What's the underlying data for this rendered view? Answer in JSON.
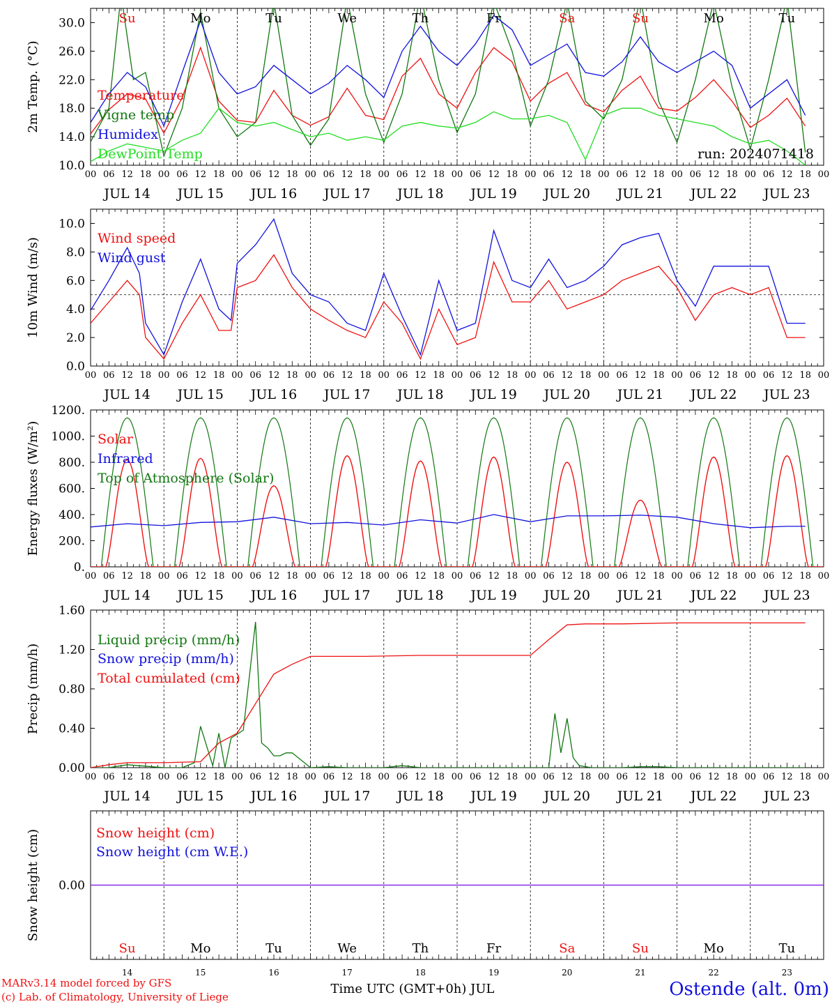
{
  "meta": {
    "run_label": "run: 2024071418",
    "footer_model": "MARv3.14 model forced by GFS",
    "footer_lab": "(c) Lab. of Climatology, University of Liege",
    "station": "Ostende (alt. 0m)",
    "xaxis_title": "Time UTC (GMT+0h) JUL"
  },
  "days": [
    {
      "date": "JUL 14",
      "num": "14",
      "wd": "Su",
      "weekend": true
    },
    {
      "date": "JUL 15",
      "num": "15",
      "wd": "Mo",
      "weekend": false
    },
    {
      "date": "JUL 16",
      "num": "16",
      "wd": "Tu",
      "weekend": false
    },
    {
      "date": "JUL 17",
      "num": "17",
      "wd": "We",
      "weekend": false
    },
    {
      "date": "JUL 18",
      "num": "18",
      "wd": "Th",
      "weekend": false
    },
    {
      "date": "JUL 19",
      "num": "19",
      "wd": "Fr",
      "weekend": false
    },
    {
      "date": "JUL 20",
      "num": "20",
      "wd": "Sa",
      "weekend": true
    },
    {
      "date": "JUL 21",
      "num": "21",
      "wd": "Su",
      "weekend": true
    },
    {
      "date": "JUL 22",
      "num": "22",
      "wd": "Mo",
      "weekend": false
    },
    {
      "date": "JUL 23",
      "num": "23",
      "wd": "Tu",
      "weekend": false
    }
  ],
  "hour_labels": [
    "00",
    "06",
    "12",
    "18"
  ],
  "colors": {
    "red": "#ee1111",
    "green": "#117711",
    "blue": "#1111dd",
    "lightgreen": "#22dd22",
    "purple": "#8a2be2",
    "weekend": "#ee1111"
  },
  "chart_data": [
    {
      "type": "line",
      "ylabel": "2m Temp. (°C)",
      "ylim": [
        10,
        32
      ],
      "yticks": [
        10,
        14,
        18,
        22,
        26,
        30
      ],
      "ytick_labels": [
        "10.0",
        "14.0",
        "18.0",
        "22.0",
        "26.0",
        "30.0"
      ],
      "x_unit": "hours since JUL 14 00 UTC",
      "series": [
        {
          "name": "Temperature",
          "color": "#ee1111",
          "x": [
            0,
            6,
            12,
            18,
            24,
            30,
            36,
            42,
            48,
            54,
            60,
            66,
            72,
            78,
            84,
            90,
            96,
            102,
            108,
            114,
            120,
            126,
            132,
            138,
            144,
            150,
            156,
            162,
            168,
            174,
            180,
            186,
            192,
            198,
            204,
            210,
            216,
            222,
            228,
            234
          ],
          "y": [
            14.4,
            17.8,
            20.0,
            19.3,
            14.5,
            19.5,
            26.5,
            19.0,
            16.3,
            16.0,
            20.5,
            17.0,
            15.6,
            16.8,
            20.8,
            17.0,
            16.4,
            22.5,
            25.0,
            20.0,
            18.0,
            23.0,
            26.5,
            24.5,
            19.0,
            21.5,
            23.0,
            18.5,
            17.5,
            20.5,
            22.5,
            18.0,
            17.6,
            19.5,
            22.0,
            19.0,
            15.3,
            17.0,
            19.4,
            15.5
          ]
        },
        {
          "name": "Vigne temp",
          "color": "#117711",
          "x": [
            0,
            6,
            10,
            14,
            18,
            24,
            30,
            36,
            42,
            48,
            54,
            60,
            66,
            72,
            78,
            84,
            90,
            96,
            102,
            108,
            114,
            120,
            126,
            132,
            138,
            144,
            150,
            156,
            162,
            168,
            174,
            180,
            186,
            192,
            198,
            204,
            210,
            216,
            222,
            228,
            234
          ],
          "y": [
            13.3,
            18.0,
            34.0,
            22.0,
            23.0,
            11.3,
            18.0,
            31.5,
            18.0,
            14.0,
            16.0,
            33.0,
            17.0,
            12.8,
            16.5,
            33.5,
            20.0,
            13.2,
            20.0,
            34.0,
            22.0,
            14.6,
            20.0,
            33.0,
            26.0,
            15.5,
            22.0,
            33.0,
            19.0,
            16.5,
            22.0,
            33.5,
            19.0,
            13.2,
            22.0,
            33.0,
            21.0,
            12.3,
            22.0,
            33.5,
            11.8
          ]
        },
        {
          "name": "Humidex",
          "color": "#1111dd",
          "x": [
            0,
            6,
            12,
            18,
            24,
            30,
            36,
            42,
            48,
            54,
            60,
            66,
            72,
            78,
            84,
            90,
            96,
            102,
            108,
            114,
            120,
            126,
            132,
            138,
            144,
            150,
            156,
            162,
            168,
            174,
            180,
            186,
            192,
            198,
            204,
            210,
            216,
            222,
            228,
            234
          ],
          "y": [
            16.0,
            20.0,
            23.0,
            21.0,
            15.5,
            23.0,
            30.3,
            23.0,
            20.0,
            21.0,
            24.0,
            22.0,
            20.0,
            21.5,
            24.0,
            22.0,
            19.5,
            26.0,
            29.5,
            26.0,
            24.0,
            27.0,
            31.0,
            29.0,
            24.0,
            25.5,
            27.0,
            23.0,
            22.5,
            24.5,
            28.0,
            24.5,
            23.0,
            24.5,
            26.0,
            24.0,
            18.0,
            20.0,
            22.0,
            17.0
          ]
        },
        {
          "name": "DewPoint Temp",
          "color": "#22dd22",
          "x": [
            0,
            6,
            12,
            18,
            24,
            30,
            36,
            42,
            48,
            54,
            60,
            66,
            72,
            78,
            84,
            90,
            96,
            102,
            108,
            114,
            120,
            126,
            132,
            138,
            144,
            150,
            156,
            162,
            168,
            174,
            180,
            186,
            192,
            198,
            204,
            210,
            216,
            222,
            228,
            234
          ],
          "y": [
            10.5,
            12.0,
            13.0,
            12.5,
            12.0,
            13.5,
            14.5,
            18.0,
            16.0,
            15.5,
            16.0,
            15.0,
            14.0,
            14.5,
            13.5,
            14.0,
            13.5,
            15.5,
            16.0,
            15.5,
            15.2,
            16.0,
            17.5,
            16.5,
            16.5,
            17.0,
            16.0,
            10.8,
            17.0,
            18.0,
            18.0,
            17.0,
            16.5,
            16.0,
            15.5,
            14.0,
            13.0,
            13.5,
            12.0,
            10.0
          ]
        }
      ]
    },
    {
      "type": "line",
      "ylabel": "10m Wind (m/s)",
      "ylim": [
        0,
        11
      ],
      "yticks": [
        0,
        2,
        4,
        6,
        8,
        10
      ],
      "ytick_labels": [
        "0.0",
        "2.0",
        "4.0",
        "6.0",
        "8.0",
        "10.0"
      ],
      "hline": 5,
      "series": [
        {
          "name": "Wind speed",
          "color": "#ee1111",
          "x": [
            0,
            6,
            12,
            16,
            18,
            24,
            30,
            36,
            42,
            46,
            48,
            54,
            60,
            66,
            72,
            78,
            84,
            90,
            96,
            102,
            108,
            114,
            120,
            126,
            132,
            138,
            144,
            150,
            156,
            162,
            168,
            174,
            180,
            186,
            192,
            198,
            204,
            210,
            216,
            222,
            228,
            234
          ],
          "y": [
            3.0,
            4.5,
            6.0,
            5.0,
            2.0,
            0.5,
            3.0,
            5.0,
            2.5,
            2.5,
            5.5,
            6.0,
            7.8,
            5.5,
            4.0,
            3.2,
            2.5,
            2.0,
            4.5,
            3.0,
            0.5,
            4.0,
            1.5,
            2.0,
            7.3,
            4.5,
            4.5,
            6.0,
            4.0,
            4.5,
            5.0,
            6.0,
            6.5,
            7.0,
            5.5,
            3.2,
            5.0,
            5.5,
            5.0,
            5.5,
            2.0,
            2.0
          ]
        },
        {
          "name": "Wind gust",
          "color": "#1111dd",
          "x": [
            0,
            6,
            12,
            16,
            18,
            24,
            30,
            36,
            42,
            46,
            48,
            54,
            60,
            66,
            72,
            78,
            84,
            90,
            96,
            102,
            108,
            114,
            120,
            126,
            132,
            138,
            144,
            150,
            156,
            162,
            168,
            174,
            180,
            186,
            192,
            198,
            204,
            210,
            216,
            222,
            228,
            234
          ],
          "y": [
            3.9,
            6.0,
            8.3,
            6.5,
            3.0,
            0.8,
            4.5,
            7.5,
            4.0,
            3.2,
            7.2,
            8.5,
            10.3,
            6.5,
            5.0,
            4.5,
            3.0,
            2.5,
            6.5,
            3.5,
            0.8,
            6.0,
            2.5,
            3.0,
            9.5,
            6.0,
            5.5,
            7.5,
            5.5,
            6.0,
            7.0,
            8.5,
            9.0,
            9.3,
            6.0,
            4.2,
            7.0,
            7.0,
            7.0,
            7.0,
            3.0,
            3.0
          ]
        }
      ]
    },
    {
      "type": "line",
      "ylabel": "Energy fluxes (W/m²)",
      "ylim": [
        0,
        1200
      ],
      "yticks": [
        0,
        200,
        400,
        600,
        800,
        1000,
        1200
      ],
      "ytick_labels": [
        "0.",
        "200.",
        "400.",
        "600.",
        "800.",
        "1000.",
        "1200."
      ],
      "toa_peak": 1140,
      "solar_peaks": [
        820,
        830,
        620,
        850,
        810,
        840,
        800,
        510,
        840,
        850
      ],
      "series": [
        {
          "name": "Solar",
          "color": "#ee1111"
        },
        {
          "name": "Infrared",
          "color": "#1111dd",
          "x": [
            0,
            12,
            24,
            36,
            48,
            60,
            72,
            84,
            96,
            108,
            120,
            132,
            144,
            156,
            168,
            180,
            192,
            204,
            216,
            228,
            234
          ],
          "y": [
            305,
            330,
            315,
            340,
            345,
            380,
            330,
            340,
            320,
            360,
            335,
            400,
            345,
            390,
            390,
            395,
            380,
            330,
            300,
            310,
            310
          ]
        },
        {
          "name": "Top of Atmosphere (Solar)",
          "color": "#117711"
        }
      ]
    },
    {
      "type": "line",
      "ylabel": "Precip (mm/h)",
      "ylim": [
        0,
        1.6
      ],
      "yticks": [
        0,
        0.4,
        0.8,
        1.2,
        1.6
      ],
      "ytick_labels": [
        "0.00",
        "0.40",
        "0.80",
        "1.20",
        "1.60"
      ],
      "series": [
        {
          "name": "Liquid precip (mm/h)",
          "color": "#117711",
          "x": [
            0,
            6,
            12,
            24,
            30,
            34,
            36,
            40,
            42,
            44,
            46,
            50,
            54,
            56,
            58,
            60,
            62,
            64,
            66,
            72,
            78,
            84,
            96,
            102,
            108,
            120,
            126,
            132,
            144,
            150,
            152,
            154,
            156,
            158,
            160,
            164,
            166,
            168,
            174,
            180,
            186,
            192,
            204,
            216,
            234
          ],
          "y": [
            0,
            0,
            0.03,
            0,
            0,
            0.05,
            0.42,
            0.02,
            0.35,
            0,
            0.3,
            0.38,
            1.48,
            0.25,
            0.2,
            0.12,
            0.12,
            0.15,
            0.15,
            0,
            0.01,
            0,
            0,
            0.02,
            0,
            0,
            0,
            0,
            0,
            0,
            0.55,
            0.15,
            0.5,
            0.1,
            0.02,
            0,
            0,
            0,
            0,
            0.01,
            0.01,
            0,
            0,
            0,
            0
          ]
        },
        {
          "name": "Snow precip (mm/h)",
          "color": "#1111dd"
        },
        {
          "name": "Total cumulated (cm)",
          "color": "#ee1111",
          "x": [
            0,
            6,
            12,
            24,
            36,
            42,
            48,
            54,
            60,
            66,
            72,
            90,
            108,
            126,
            144,
            150,
            156,
            162,
            174,
            192,
            216,
            234
          ],
          "y": [
            0,
            0.03,
            0.05,
            0.05,
            0.06,
            0.25,
            0.35,
            0.65,
            0.95,
            1.05,
            1.13,
            1.13,
            1.14,
            1.14,
            1.14,
            1.3,
            1.45,
            1.46,
            1.46,
            1.47,
            1.47,
            1.47
          ]
        }
      ]
    },
    {
      "type": "line",
      "ylabel": "Snow height (cm)",
      "ylim": [
        -1,
        1
      ],
      "yticks": [
        0
      ],
      "ytick_labels": [
        "0.00"
      ],
      "series": [
        {
          "name": "Snow height (cm)",
          "color": "#ee1111",
          "x": [
            0,
            240
          ],
          "y": [
            0,
            0
          ]
        },
        {
          "name": "Snow height (cm W.E.)",
          "color": "#1111dd",
          "x": [
            0,
            240
          ],
          "y": [
            0,
            0
          ]
        }
      ]
    }
  ]
}
